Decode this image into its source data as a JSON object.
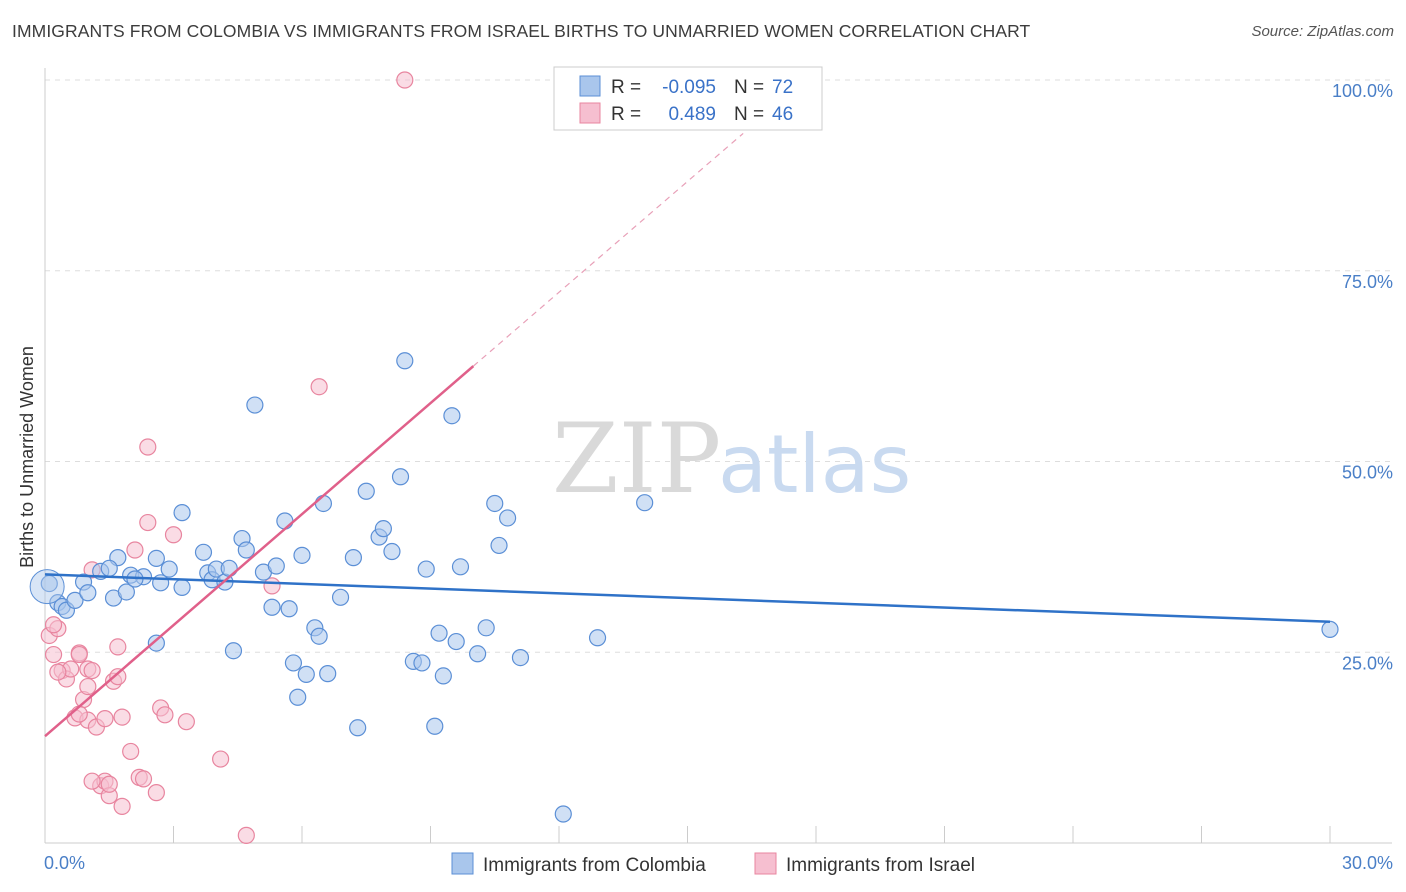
{
  "header": {
    "title": "IMMIGRANTS FROM COLOMBIA VS IMMIGRANTS FROM ISRAEL BIRTHS TO UNMARRIED WOMEN CORRELATION CHART",
    "source": "Source: ZipAtlas.com"
  },
  "watermark": {
    "zip": "ZIP",
    "atlas": "atlas"
  },
  "legend": {
    "r_label": "R =",
    "n_label": "N =",
    "series": [
      {
        "r": "-0.095",
        "n": "72"
      },
      {
        "r": "0.489",
        "n": "46"
      }
    ]
  },
  "colors": {
    "colombia_fill": "#a9c6ec",
    "colombia_stroke": "#5b8fd6",
    "colombia_line": "#2f72c8",
    "israel_fill": "#f6bfd0",
    "israel_stroke": "#e8859f",
    "israel_line": "#e0608a",
    "grid": "#dddddd",
    "tick_text": "#4a7fc7"
  },
  "chart_data": {
    "type": "scatter",
    "title": "IMMIGRANTS FROM COLOMBIA VS IMMIGRANTS FROM ISRAEL BIRTHS TO UNMARRIED WOMEN CORRELATION CHART",
    "xlabel": "",
    "ylabel": "Births to Unmarried Women",
    "xlim": [
      0,
      30
    ],
    "ylim": [
      0,
      100
    ],
    "x_tick_labels": [
      "0.0%",
      "30.0%"
    ],
    "y_ticks": [
      25,
      50,
      75,
      100
    ],
    "y_tick_labels": [
      "25.0%",
      "50.0%",
      "75.0%",
      "100.0%"
    ],
    "series": [
      {
        "name": "Immigrants from Colombia",
        "r": -0.095,
        "n": 72,
        "trend": {
          "x": [
            0,
            30
          ],
          "y": [
            35.2,
            29.0
          ]
        },
        "points": [
          [
            0.1,
            34.0
          ],
          [
            0.3,
            31.5
          ],
          [
            0.4,
            31.0
          ],
          [
            0.5,
            30.5
          ],
          [
            0.7,
            31.8
          ],
          [
            0.9,
            34.2
          ],
          [
            1.0,
            32.8
          ],
          [
            1.3,
            35.6
          ],
          [
            1.6,
            32.1
          ],
          [
            1.7,
            37.4
          ],
          [
            1.9,
            32.9
          ],
          [
            2.0,
            35.1
          ],
          [
            2.3,
            34.9
          ],
          [
            2.6,
            26.2
          ],
          [
            2.6,
            37.3
          ],
          [
            2.7,
            34.1
          ],
          [
            2.9,
            35.9
          ],
          [
            3.2,
            33.5
          ],
          [
            3.2,
            43.3
          ],
          [
            3.7,
            38.1
          ],
          [
            3.8,
            35.4
          ],
          [
            3.9,
            34.5
          ],
          [
            4.0,
            35.9
          ],
          [
            4.2,
            34.2
          ],
          [
            4.4,
            25.2
          ],
          [
            4.6,
            39.9
          ],
          [
            4.7,
            38.4
          ],
          [
            4.9,
            57.4
          ],
          [
            5.1,
            35.5
          ],
          [
            5.3,
            30.9
          ],
          [
            5.4,
            36.3
          ],
          [
            5.6,
            42.2
          ],
          [
            5.7,
            30.7
          ],
          [
            5.8,
            23.6
          ],
          [
            6.0,
            37.7
          ],
          [
            6.1,
            22.1
          ],
          [
            6.3,
            28.2
          ],
          [
            6.4,
            27.1
          ],
          [
            5.9,
            19.1
          ],
          [
            6.5,
            44.5
          ],
          [
            6.6,
            22.2
          ],
          [
            6.9,
            32.2
          ],
          [
            7.2,
            37.4
          ],
          [
            7.5,
            46.1
          ],
          [
            7.8,
            40.1
          ],
          [
            7.9,
            41.2
          ],
          [
            8.1,
            38.2
          ],
          [
            8.3,
            48.0
          ],
          [
            8.4,
            63.2
          ],
          [
            8.6,
            23.8
          ],
          [
            8.9,
            35.9
          ],
          [
            9.1,
            15.3
          ],
          [
            9.3,
            21.9
          ],
          [
            9.5,
            56.0
          ],
          [
            9.6,
            26.4
          ],
          [
            9.7,
            36.2
          ],
          [
            10.1,
            24.8
          ],
          [
            10.3,
            28.2
          ],
          [
            10.5,
            44.5
          ],
          [
            10.6,
            39.0
          ],
          [
            10.8,
            42.6
          ],
          [
            11.1,
            24.3
          ],
          [
            12.1,
            3.8
          ],
          [
            12.9,
            26.9
          ],
          [
            14.0,
            44.6
          ],
          [
            30.0,
            28.0
          ],
          [
            7.3,
            15.1
          ],
          [
            8.8,
            23.6
          ],
          [
            9.2,
            27.5
          ],
          [
            1.5,
            36.0
          ],
          [
            2.1,
            34.6
          ],
          [
            4.3,
            36.0
          ]
        ]
      },
      {
        "name": "Immigrants from Israel",
        "r": 0.489,
        "n": 46,
        "trend": {
          "x": [
            0,
            10
          ],
          "y": [
            14.0,
            62.5
          ]
        },
        "trend_extension": {
          "x": [
            10,
            16.3
          ],
          "y": [
            62.5,
            93.0
          ]
        },
        "points": [
          [
            0.1,
            27.2
          ],
          [
            0.2,
            24.7
          ],
          [
            0.3,
            28.1
          ],
          [
            0.4,
            22.6
          ],
          [
            0.5,
            21.5
          ],
          [
            0.6,
            22.8
          ],
          [
            0.7,
            16.4
          ],
          [
            0.8,
            24.9
          ],
          [
            0.8,
            24.7
          ],
          [
            0.9,
            18.8
          ],
          [
            1.0,
            20.5
          ],
          [
            1.0,
            16.1
          ],
          [
            1.0,
            22.8
          ],
          [
            1.1,
            35.8
          ],
          [
            1.1,
            22.6
          ],
          [
            1.2,
            15.2
          ],
          [
            1.3,
            7.5
          ],
          [
            1.4,
            8.1
          ],
          [
            1.4,
            16.3
          ],
          [
            1.5,
            6.2
          ],
          [
            1.5,
            7.7
          ],
          [
            1.6,
            21.2
          ],
          [
            1.7,
            21.8
          ],
          [
            1.7,
            25.7
          ],
          [
            1.8,
            4.8
          ],
          [
            1.8,
            16.5
          ],
          [
            2.0,
            12.0
          ],
          [
            2.1,
            38.4
          ],
          [
            2.2,
            8.6
          ],
          [
            2.3,
            8.4
          ],
          [
            2.4,
            42.0
          ],
          [
            2.4,
            51.9
          ],
          [
            2.6,
            6.6
          ],
          [
            2.7,
            17.7
          ],
          [
            2.8,
            16.8
          ],
          [
            3.0,
            40.4
          ],
          [
            3.3,
            15.9
          ],
          [
            4.1,
            11.0
          ],
          [
            4.7,
            1.0
          ],
          [
            5.3,
            33.7
          ],
          [
            6.4,
            59.8
          ],
          [
            8.4,
            100.0
          ],
          [
            1.1,
            8.1
          ],
          [
            0.8,
            16.9
          ],
          [
            0.3,
            22.4
          ],
          [
            0.2,
            28.6
          ]
        ]
      }
    ]
  },
  "bottom_legend": {
    "items": [
      {
        "label": "Immigrants from Colombia"
      },
      {
        "label": "Immigrants from Israel"
      }
    ]
  }
}
